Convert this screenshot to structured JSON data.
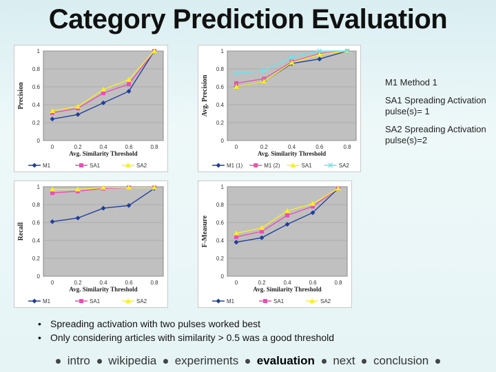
{
  "title": "Category Prediction Evaluation",
  "side_legend": [
    {
      "label": "M1 Method 1"
    },
    {
      "label": "SA1 Spreading Activation pulse(s)= 1"
    },
    {
      "label": "SA2 Spreading Activation pulse(s)=2"
    }
  ],
  "bullets": [
    "Spreading activation with two pulses worked best",
    "Only considering articles with similarity > 0.5 was a good threshold"
  ],
  "nav": {
    "items": [
      "intro",
      "wikipedia",
      "experiments",
      "evaluation",
      "next",
      "conclusion"
    ],
    "active": "evaluation"
  },
  "colors": {
    "M1": "#1f3f9a",
    "M1_2": "#e05aa8",
    "SA1": "#e84fb5",
    "SA2": "#f7ef2a",
    "SA2_cyan": "#67e6ef",
    "plot_bg": "#c0c0c0"
  },
  "chart_data": [
    {
      "type": "line",
      "id": "precision-chart",
      "ylabel": "Precision",
      "xlabel": "Avg. Similarity Threshold",
      "x": [
        0,
        0.2,
        0.4,
        0.6,
        0.8
      ],
      "xticks": [
        "0",
        "0.2",
        "0.4",
        "0.6",
        "0.8"
      ],
      "yticks": [
        "0",
        "0.2",
        "0.4",
        "0.6",
        "0.8",
        "1"
      ],
      "ylim": [
        0,
        1
      ],
      "series": [
        {
          "name": "M1",
          "values": [
            0.24,
            0.29,
            0.42,
            0.55,
            1.0
          ],
          "color": "#1f3f9a",
          "marker": "diamond"
        },
        {
          "name": "SA1",
          "values": [
            0.31,
            0.36,
            0.53,
            0.63,
            1.0
          ],
          "color": "#e84fb5",
          "marker": "square"
        },
        {
          "name": "SA2",
          "values": [
            0.33,
            0.38,
            0.57,
            0.68,
            1.0
          ],
          "color": "#f7ef2a",
          "marker": "triangle"
        }
      ]
    },
    {
      "type": "line",
      "id": "avg-precision-chart",
      "ylabel": "Avg. Precision",
      "xlabel": "Avg. Similarity Threshold",
      "x": [
        0,
        0.2,
        0.4,
        0.6,
        0.8
      ],
      "xticks": [
        "0",
        "0.2",
        "0.4",
        "0.6",
        "0.8"
      ],
      "yticks": [
        "0",
        "0.2",
        "0.4",
        "0.6",
        "0.8",
        "1"
      ],
      "ylim": [
        0,
        1
      ],
      "series": [
        {
          "name": "M1 (1)",
          "values": [
            0.6,
            0.66,
            0.86,
            0.91,
            1.0
          ],
          "color": "#1f3f9a",
          "marker": "diamond"
        },
        {
          "name": "M1 (2)",
          "values": [
            0.64,
            0.69,
            0.88,
            0.97,
            1.0
          ],
          "color": "#e05aa8",
          "marker": "square"
        },
        {
          "name": "SA1",
          "values": [
            0.6,
            0.66,
            0.87,
            0.96,
            1.0
          ],
          "color": "#f7ef2a",
          "marker": "triangle"
        },
        {
          "name": "SA2",
          "values": [
            0.75,
            0.78,
            0.93,
            1.0,
            1.0
          ],
          "color": "#67e6ef",
          "marker": "x"
        }
      ]
    },
    {
      "type": "line",
      "id": "recall-chart",
      "ylabel": "Recall",
      "xlabel": "Avg. Similarity Threshold",
      "x": [
        0,
        0.2,
        0.4,
        0.6,
        0.8
      ],
      "xticks": [
        "0",
        "0.2",
        "0.4",
        "0.6",
        "0.8"
      ],
      "yticks": [
        "0",
        "0.2",
        "0.4",
        "0.6",
        "0.8",
        "1"
      ],
      "ylim": [
        0,
        1
      ],
      "series": [
        {
          "name": "M1",
          "values": [
            0.61,
            0.65,
            0.76,
            0.79,
            0.98
          ],
          "color": "#1f3f9a",
          "marker": "diamond"
        },
        {
          "name": "SA1",
          "values": [
            0.93,
            0.95,
            0.98,
            0.99,
            0.99
          ],
          "color": "#e84fb5",
          "marker": "square"
        },
        {
          "name": "SA2",
          "values": [
            0.97,
            0.97,
            0.99,
            0.99,
            0.99
          ],
          "color": "#f7ef2a",
          "marker": "triangle"
        }
      ]
    },
    {
      "type": "line",
      "id": "f-measure-chart",
      "ylabel": "F-Measure",
      "xlabel": "Avg. Similarity Threshold",
      "x": [
        0,
        0.2,
        0.4,
        0.6,
        0.8
      ],
      "xticks": [
        "0",
        "0.2",
        "0.4",
        "0.6",
        "0.8"
      ],
      "yticks": [
        "0",
        "0.2",
        "0.4",
        "0.6",
        "0.8",
        "1"
      ],
      "ylim": [
        0,
        1
      ],
      "series": [
        {
          "name": "M1",
          "values": [
            0.38,
            0.43,
            0.58,
            0.71,
            0.98
          ],
          "color": "#1f3f9a",
          "marker": "diamond"
        },
        {
          "name": "SA1",
          "values": [
            0.44,
            0.5,
            0.68,
            0.78,
            0.98
          ],
          "color": "#e84fb5",
          "marker": "square"
        },
        {
          "name": "SA2",
          "values": [
            0.48,
            0.54,
            0.73,
            0.81,
            0.98
          ],
          "color": "#f7ef2a",
          "marker": "triangle"
        }
      ]
    }
  ]
}
